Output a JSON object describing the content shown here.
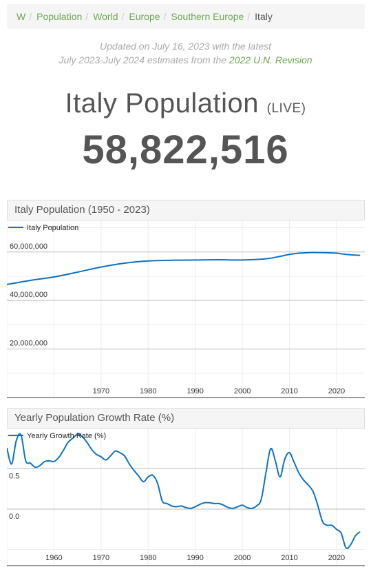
{
  "breadcrumb": {
    "items": [
      "W",
      "Population",
      "World",
      "Europe",
      "Southern Europe"
    ],
    "current": "Italy"
  },
  "updated": {
    "line1": "Updated on July 16, 2023 with the latest",
    "line2_prefix": "July 2023-July 2024 estimates from the",
    "link_text": "2022 U.N. Revision"
  },
  "headline": {
    "title": "Italy Population",
    "live": "(LIVE)",
    "counter": "58,822,516"
  },
  "colors": {
    "accent": "#6aa84f",
    "line": "#0d72c3"
  },
  "chart_data": [
    {
      "type": "line",
      "title": "Italy Population (1950 - 2023)",
      "xlabel": "",
      "ylabel": "",
      "xlim": [
        1950,
        2026
      ],
      "ylim": [
        0,
        73000000
      ],
      "x_ticks": [
        1970,
        1980,
        1990,
        2000,
        2010,
        2020
      ],
      "y_ticks": [
        20000000,
        40000000,
        60000000
      ],
      "y_tick_labels": [
        "20,000,000",
        "40,000,000",
        "60,000,000"
      ],
      "grid": true,
      "legend": "top-left",
      "series": [
        {
          "name": "Italy Population",
          "x": [
            1950,
            1955,
            1960,
            1965,
            1970,
            1975,
            1980,
            1985,
            1990,
            1995,
            2000,
            2005,
            2008,
            2010,
            2012,
            2015,
            2018,
            2020,
            2022,
            2025
          ],
          "y": [
            46600000,
            48300000,
            49700000,
            51700000,
            53800000,
            55400000,
            56300000,
            56600000,
            56700000,
            56800000,
            56700000,
            57200000,
            58200000,
            59000000,
            59500000,
            59800000,
            59700000,
            59500000,
            59000000,
            58600000
          ]
        }
      ]
    },
    {
      "type": "line",
      "title": "Yearly Population Growth Rate (%)",
      "xlabel": "",
      "ylabel": "",
      "xlim": [
        1950,
        2026
      ],
      "ylim": [
        -0.7,
        1.0
      ],
      "x_ticks": [
        1960,
        1970,
        1980,
        1990,
        2000,
        2010,
        2020
      ],
      "y_ticks": [
        0.0,
        0.5
      ],
      "y_tick_labels": [
        "0.0",
        "0.5"
      ],
      "grid": true,
      "legend": "top-left",
      "series": [
        {
          "name": "Yearly Growth Rate (%)",
          "x": [
            1950,
            1951,
            1952,
            1953,
            1954,
            1955,
            1956,
            1957,
            1958,
            1959,
            1960,
            1961,
            1962,
            1963,
            1964,
            1965,
            1966,
            1967,
            1968,
            1969,
            1970,
            1971,
            1972,
            1973,
            1974,
            1975,
            1976,
            1977,
            1978,
            1979,
            1980,
            1981,
            1982,
            1983,
            1984,
            1985,
            1986,
            1987,
            1988,
            1989,
            1990,
            1991,
            1992,
            1993,
            1994,
            1995,
            1996,
            1997,
            1998,
            1999,
            2000,
            2001,
            2002,
            2003,
            2004,
            2005,
            2006,
            2007,
            2008,
            2009,
            2010,
            2011,
            2012,
            2013,
            2014,
            2015,
            2016,
            2017,
            2018,
            2019,
            2020,
            2021,
            2022,
            2023,
            2024,
            2025
          ],
          "y": [
            0.76,
            0.56,
            0.85,
            0.92,
            0.6,
            0.57,
            0.52,
            0.54,
            0.59,
            0.6,
            0.59,
            0.64,
            0.73,
            0.83,
            0.88,
            0.93,
            0.9,
            0.83,
            0.74,
            0.68,
            0.65,
            0.61,
            0.66,
            0.72,
            0.7,
            0.66,
            0.56,
            0.48,
            0.41,
            0.34,
            0.4,
            0.42,
            0.32,
            0.1,
            0.07,
            0.04,
            0.03,
            0.04,
            0.02,
            0.01,
            0.03,
            0.06,
            0.08,
            0.08,
            0.07,
            0.07,
            0.05,
            0.02,
            0.01,
            0.03,
            0.05,
            0.02,
            0.01,
            0.04,
            0.12,
            0.45,
            0.75,
            0.6,
            0.4,
            0.62,
            0.7,
            0.58,
            0.45,
            0.36,
            0.3,
            0.22,
            0.05,
            -0.15,
            -0.2,
            -0.2,
            -0.25,
            -0.3,
            -0.48,
            -0.44,
            -0.33,
            -0.28
          ]
        }
      ]
    }
  ]
}
